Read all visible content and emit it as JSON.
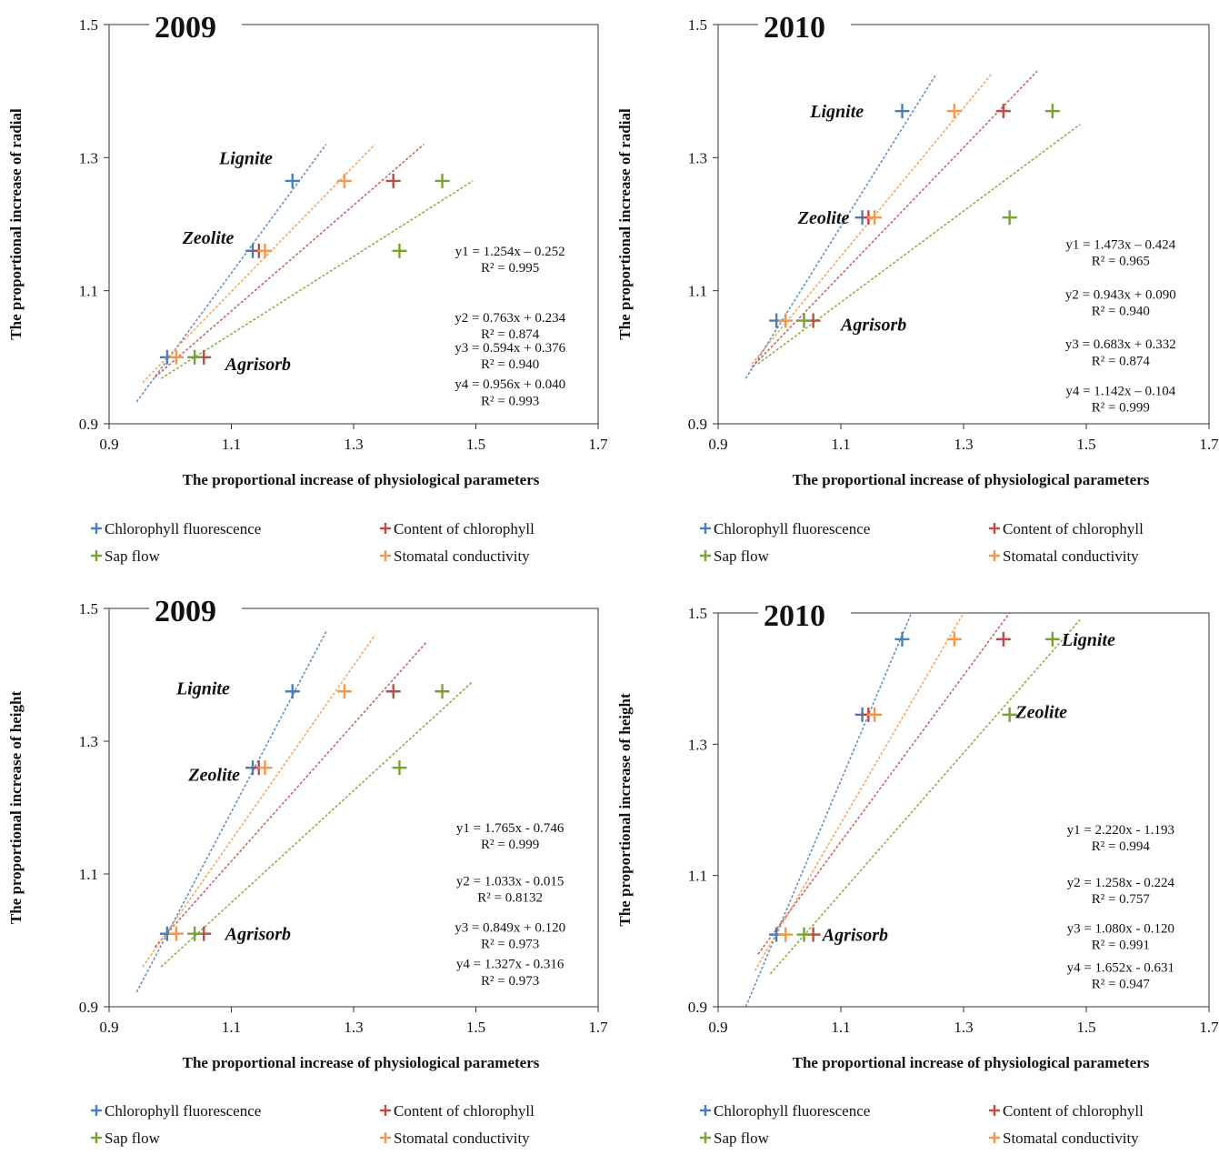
{
  "colors": {
    "chlorophyll_fluorescence": "#4a7ebb",
    "content_of_chlorophyll": "#be4b48",
    "sap_flow": "#78a22f",
    "stomatal_conductivity": "#f79646"
  },
  "legend": [
    {
      "key": "chlorophyll_fluorescence",
      "label": "Chlorophyll fluorescence"
    },
    {
      "key": "content_of_chlorophyll",
      "label": "Content of chlorophyll"
    },
    {
      "key": "sap_flow",
      "label": "Sap flow"
    },
    {
      "key": "stomatal_conductivity",
      "label": "Stomatal conductivity"
    }
  ],
  "chart_data": [
    {
      "type": "scatter",
      "title": "2009",
      "xlabel": "The proportional increase of physiological parameters",
      "ylabel": "The proportional increase of radial",
      "xlim": [
        0.9,
        1.7
      ],
      "ylim": [
        0.9,
        1.5
      ],
      "xticks": [
        "0.9",
        "1.1",
        "1.3",
        "1.5",
        "1.7"
      ],
      "yticks": [
        "0.9",
        "1.1",
        "1.3",
        "1.5"
      ],
      "site_labels": [
        {
          "text": "Lignite",
          "x": 1.08,
          "y": 1.3
        },
        {
          "text": "Zeolite",
          "x": 1.02,
          "y": 1.18
        },
        {
          "text": "Agrisorb",
          "x": 1.09,
          "y": 0.99
        }
      ],
      "series": [
        {
          "key": "chlorophyll_fluorescence",
          "points": [
            [
              0.995,
              1.0
            ],
            [
              1.135,
              1.16
            ],
            [
              1.2,
              1.265
            ]
          ],
          "trend": [
            [
              0.945,
              0.933
            ],
            [
              1.255,
              1.32
            ]
          ]
        },
        {
          "key": "content_of_chlorophyll",
          "points": [
            [
              1.055,
              1.0
            ],
            [
              1.145,
              1.16
            ],
            [
              1.365,
              1.265
            ]
          ],
          "trend": [
            [
              0.975,
              0.97
            ],
            [
              1.415,
              1.32
            ]
          ]
        },
        {
          "key": "sap_flow",
          "points": [
            [
              1.04,
              1.0
            ],
            [
              1.375,
              1.16
            ],
            [
              1.445,
              1.265
            ]
          ],
          "trend": [
            [
              0.985,
              0.968
            ],
            [
              1.495,
              1.265
            ]
          ]
        },
        {
          "key": "stomatal_conductivity",
          "points": [
            [
              1.01,
              1.0
            ],
            [
              1.155,
              1.16
            ],
            [
              1.285,
              1.265
            ]
          ],
          "trend": [
            [
              0.955,
              0.962
            ],
            [
              1.335,
              1.32
            ]
          ]
        }
      ],
      "equations": [
        [
          "y1 = 1.254x – 0.252",
          "R² = 0.995"
        ],
        [
          "y2 = 0.763x + 0.234",
          "R² = 0.874"
        ],
        [
          "y3 = 0.594x + 0.376",
          "R² = 0.940"
        ],
        [
          "y4 = 0.956x + 0.040",
          "R² = 0.993"
        ]
      ],
      "equation_y": [
        [
          1.16,
          1.135
        ],
        [
          1.06,
          1.035
        ],
        [
          1.015,
          0.99
        ],
        [
          0.96,
          0.935
        ]
      ]
    },
    {
      "type": "scatter",
      "title": "2010",
      "xlabel": "The proportional increase of physiological parameters",
      "ylabel": "The proportional increase of radial",
      "xlim": [
        0.9,
        1.7
      ],
      "ylim": [
        0.9,
        1.5
      ],
      "xticks": [
        "0.9",
        "1.1",
        "1.3",
        "1.5",
        "1.7"
      ],
      "yticks": [
        "0.9",
        "1.1",
        "1.3",
        "1.5"
      ],
      "site_labels": [
        {
          "text": "Lignite",
          "x": 1.05,
          "y": 1.37
        },
        {
          "text": "Zeolite",
          "x": 1.03,
          "y": 1.21
        },
        {
          "text": "Agrisorb",
          "x": 1.1,
          "y": 1.05
        }
      ],
      "series": [
        {
          "key": "chlorophyll_fluorescence",
          "points": [
            [
              0.995,
              1.055
            ],
            [
              1.135,
              1.21
            ],
            [
              1.2,
              1.37
            ]
          ],
          "trend": [
            [
              0.945,
              0.968
            ],
            [
              1.255,
              1.425
            ]
          ]
        },
        {
          "key": "content_of_chlorophyll",
          "points": [
            [
              1.055,
              1.055
            ],
            [
              1.145,
              1.21
            ],
            [
              1.365,
              1.37
            ]
          ],
          "trend": [
            [
              0.955,
              0.985
            ],
            [
              1.42,
              1.43
            ]
          ]
        },
        {
          "key": "sap_flow",
          "points": [
            [
              1.04,
              1.055
            ],
            [
              1.375,
              1.21
            ],
            [
              1.445,
              1.37
            ]
          ],
          "trend": [
            [
              0.965,
              0.99
            ],
            [
              1.49,
              1.35
            ]
          ]
        },
        {
          "key": "stomatal_conductivity",
          "points": [
            [
              1.01,
              1.055
            ],
            [
              1.155,
              1.21
            ],
            [
              1.285,
              1.37
            ]
          ],
          "trend": [
            [
              0.955,
              0.99
            ],
            [
              1.345,
              1.425
            ]
          ]
        }
      ],
      "equations": [
        [
          "y1 = 1.473x – 0.424",
          "R² = 0.965"
        ],
        [
          "y2 = 0.943x + 0.090",
          "R² = 0.940"
        ],
        [
          "y3 = 0.683x + 0.332",
          "R² = 0.874"
        ],
        [
          "y4 = 1.142x – 0.104",
          "R² = 0.999"
        ]
      ],
      "equation_y": [
        [
          1.17,
          1.145
        ],
        [
          1.095,
          1.07
        ],
        [
          1.02,
          0.995
        ],
        [
          0.95,
          0.925
        ]
      ]
    },
    {
      "type": "scatter",
      "title": "2009",
      "xlabel": "The proportional increase of physiological parameters",
      "ylabel": "The proportional increase of height",
      "xlim": [
        0.9,
        1.7
      ],
      "ylim": [
        0.9,
        1.5
      ],
      "xticks": [
        "0.9",
        "1.1",
        "1.3",
        "1.5",
        "1.7"
      ],
      "yticks": [
        "0.9",
        "1.1",
        "1.3",
        "1.5"
      ],
      "site_labels": [
        {
          "text": "Lignite",
          "x": 1.01,
          "y": 1.38
        },
        {
          "text": "Zeolite",
          "x": 1.03,
          "y": 1.25
        },
        {
          "text": "Agrisorb",
          "x": 1.09,
          "y": 1.01
        }
      ],
      "series": [
        {
          "key": "chlorophyll_fluorescence",
          "points": [
            [
              0.995,
              1.01
            ],
            [
              1.135,
              1.26
            ],
            [
              1.2,
              1.375
            ]
          ],
          "trend": [
            [
              0.945,
              0.922
            ],
            [
              1.255,
              1.465
            ]
          ]
        },
        {
          "key": "content_of_chlorophyll",
          "points": [
            [
              1.055,
              1.01
            ],
            [
              1.145,
              1.26
            ],
            [
              1.365,
              1.375
            ]
          ],
          "trend": [
            [
              0.975,
              0.99
            ],
            [
              1.42,
              1.45
            ]
          ]
        },
        {
          "key": "sap_flow",
          "points": [
            [
              1.04,
              1.01
            ],
            [
              1.375,
              1.26
            ],
            [
              1.445,
              1.375
            ]
          ],
          "trend": [
            [
              0.985,
              0.96
            ],
            [
              1.495,
              1.39
            ]
          ]
        },
        {
          "key": "stomatal_conductivity",
          "points": [
            [
              1.01,
              1.01
            ],
            [
              1.155,
              1.26
            ],
            [
              1.285,
              1.375
            ]
          ],
          "trend": [
            [
              0.955,
              0.96
            ],
            [
              1.335,
              1.46
            ]
          ]
        }
      ],
      "equations": [
        [
          "y1 = 1.765x - 0.746",
          "R² = 0.999"
        ],
        [
          "y2 = 1.033x - 0.015",
          "R² = 0.8132"
        ],
        [
          "y3 = 0.849x + 0.120",
          "R² = 0.973"
        ],
        [
          "y4 = 1.327x - 0.316",
          "R² = 0.973"
        ]
      ],
      "equation_y": [
        [
          1.17,
          1.145
        ],
        [
          1.09,
          1.065
        ],
        [
          1.02,
          0.995
        ],
        [
          0.965,
          0.94
        ]
      ]
    },
    {
      "type": "scatter",
      "title": "2010",
      "xlabel": "The proportional increase of physiological parameters",
      "ylabel": "The proportional increase of height",
      "xlim": [
        0.9,
        1.7
      ],
      "ylim": [
        0.9,
        1.5
      ],
      "xticks": [
        "0.9",
        "1.1",
        "1.3",
        "1.5",
        "1.7"
      ],
      "yticks": [
        "0.9",
        "1.1",
        "1.3",
        "1.5"
      ],
      "site_labels": [
        {
          "text": "Lignite",
          "x": 1.46,
          "y": 1.46
        },
        {
          "text": "Zeolite",
          "x": 1.385,
          "y": 1.35
        },
        {
          "text": "Agrisorb",
          "x": 1.07,
          "y": 1.01
        }
      ],
      "series": [
        {
          "key": "chlorophyll_fluorescence",
          "points": [
            [
              0.995,
              1.01
            ],
            [
              1.135,
              1.345
            ],
            [
              1.2,
              1.46
            ]
          ],
          "trend": [
            [
              0.945,
              0.9
            ],
            [
              1.215,
              1.5
            ]
          ]
        },
        {
          "key": "content_of_chlorophyll",
          "points": [
            [
              1.055,
              1.01
            ],
            [
              1.145,
              1.345
            ],
            [
              1.365,
              1.46
            ]
          ],
          "trend": [
            [
              0.965,
              0.98
            ],
            [
              1.375,
              1.5
            ]
          ]
        },
        {
          "key": "sap_flow",
          "points": [
            [
              1.04,
              1.01
            ],
            [
              1.375,
              1.345
            ],
            [
              1.445,
              1.46
            ]
          ],
          "trend": [
            [
              0.985,
              0.95
            ],
            [
              1.49,
              1.49
            ]
          ]
        },
        {
          "key": "stomatal_conductivity",
          "points": [
            [
              1.01,
              1.01
            ],
            [
              1.155,
              1.345
            ],
            [
              1.285,
              1.46
            ]
          ],
          "trend": [
            [
              0.96,
              0.955
            ],
            [
              1.3,
              1.5
            ]
          ]
        }
      ],
      "equations": [
        [
          "y1 = 2.220x - 1.193",
          "R² = 0.994"
        ],
        [
          "y2 = 1.258x - 0.224",
          "R² = 0.757"
        ],
        [
          "y3 = 1.080x - 0.120",
          "R² = 0.991"
        ],
        [
          "y4 = 1.652x - 0.631",
          "R² = 0.947"
        ]
      ],
      "equation_y": [
        [
          1.17,
          1.145
        ],
        [
          1.09,
          1.065
        ],
        [
          1.02,
          0.995
        ],
        [
          0.96,
          0.935
        ]
      ]
    }
  ]
}
